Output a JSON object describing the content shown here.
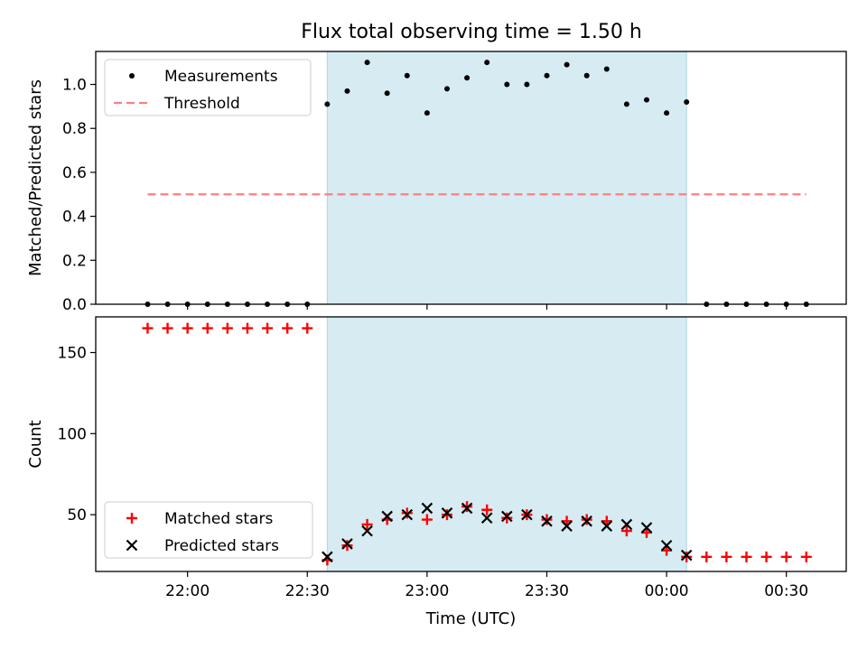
{
  "figure": {
    "title": "Flux total observing time = 1.50 h"
  },
  "chart_data": [
    {
      "type": "scatter",
      "ylabel": "Matched/Predicted stars",
      "ylim": [
        0,
        1.15
      ],
      "yticks": [
        "0.0",
        "0.2",
        "0.4",
        "0.6",
        "0.8",
        "1.0"
      ],
      "ytick_values": [
        0,
        0.2,
        0.4,
        0.6,
        0.8,
        1.0
      ],
      "x": [
        "21:50",
        "21:55",
        "22:00",
        "22:05",
        "22:10",
        "22:15",
        "22:20",
        "22:25",
        "22:30",
        "22:35",
        "22:40",
        "22:45",
        "22:50",
        "22:55",
        "23:00",
        "23:05",
        "23:10",
        "23:15",
        "23:20",
        "23:25",
        "23:30",
        "23:35",
        "23:40",
        "23:45",
        "23:50",
        "23:55",
        "00:00",
        "00:05",
        "00:10",
        "00:15",
        "00:20",
        "00:25",
        "00:30",
        "00:35"
      ],
      "shaded_span": [
        "22:35",
        "00:05"
      ],
      "legend_position": "upper-left",
      "series": [
        {
          "name": "Measurements",
          "marker": "dot",
          "color": "#000000",
          "values": [
            0,
            0,
            0,
            0,
            0,
            0,
            0,
            0,
            0,
            0.91,
            0.97,
            1.1,
            0.96,
            1.04,
            0.87,
            0.98,
            1.03,
            1.1,
            1.0,
            1.0,
            1.04,
            1.09,
            1.04,
            1.07,
            0.91,
            0.93,
            0.87,
            0.92,
            0,
            0,
            0,
            0,
            0,
            0
          ]
        },
        {
          "name": "Threshold",
          "marker": "dashed-line",
          "color": "#ff7f7f",
          "values": [
            0.5,
            0.5,
            0.5,
            0.5,
            0.5,
            0.5,
            0.5,
            0.5,
            0.5,
            0.5,
            0.5,
            0.5,
            0.5,
            0.5,
            0.5,
            0.5,
            0.5,
            0.5,
            0.5,
            0.5,
            0.5,
            0.5,
            0.5,
            0.5,
            0.5,
            0.5,
            0.5,
            0.5,
            0.5,
            0.5,
            0.5,
            0.5,
            0.5,
            0.5
          ]
        }
      ]
    },
    {
      "type": "scatter",
      "ylabel": "Count",
      "xlabel": "Time (UTC)",
      "ylim": [
        15,
        172
      ],
      "yticks": [
        "50",
        "100",
        "150"
      ],
      "ytick_values": [
        50,
        100,
        150
      ],
      "xticks": [
        "22:00",
        "22:30",
        "23:00",
        "23:30",
        "00:00",
        "00:30"
      ],
      "x": [
        "21:50",
        "21:55",
        "22:00",
        "22:05",
        "22:10",
        "22:15",
        "22:20",
        "22:25",
        "22:30",
        "22:35",
        "22:40",
        "22:45",
        "22:50",
        "22:55",
        "23:00",
        "23:05",
        "23:10",
        "23:15",
        "23:20",
        "23:25",
        "23:30",
        "23:35",
        "23:40",
        "23:45",
        "23:50",
        "23:55",
        "00:00",
        "00:05",
        "00:10",
        "00:15",
        "00:20",
        "00:25",
        "00:30",
        "00:35"
      ],
      "shaded_span": [
        "22:35",
        "00:05"
      ],
      "legend_position": "lower-left",
      "series": [
        {
          "name": "Matched stars",
          "marker": "plus",
          "color": "#ff0000",
          "values": [
            165,
            165,
            165,
            165,
            165,
            165,
            165,
            165,
            165,
            22,
            31,
            44,
            47,
            51,
            47,
            50,
            55,
            53,
            48,
            50,
            47,
            46,
            47,
            46,
            40,
            39,
            28,
            24,
            24,
            24,
            24,
            24,
            24,
            24
          ]
        },
        {
          "name": "Predicted stars",
          "marker": "x",
          "color": "#000000",
          "values": [
            null,
            null,
            null,
            null,
            null,
            null,
            null,
            null,
            null,
            24,
            32,
            40,
            49,
            50,
            54,
            51,
            54,
            48,
            49,
            50,
            46,
            43,
            46,
            43,
            44,
            42,
            31,
            25,
            null,
            null,
            null,
            null,
            null,
            null
          ]
        }
      ]
    }
  ]
}
